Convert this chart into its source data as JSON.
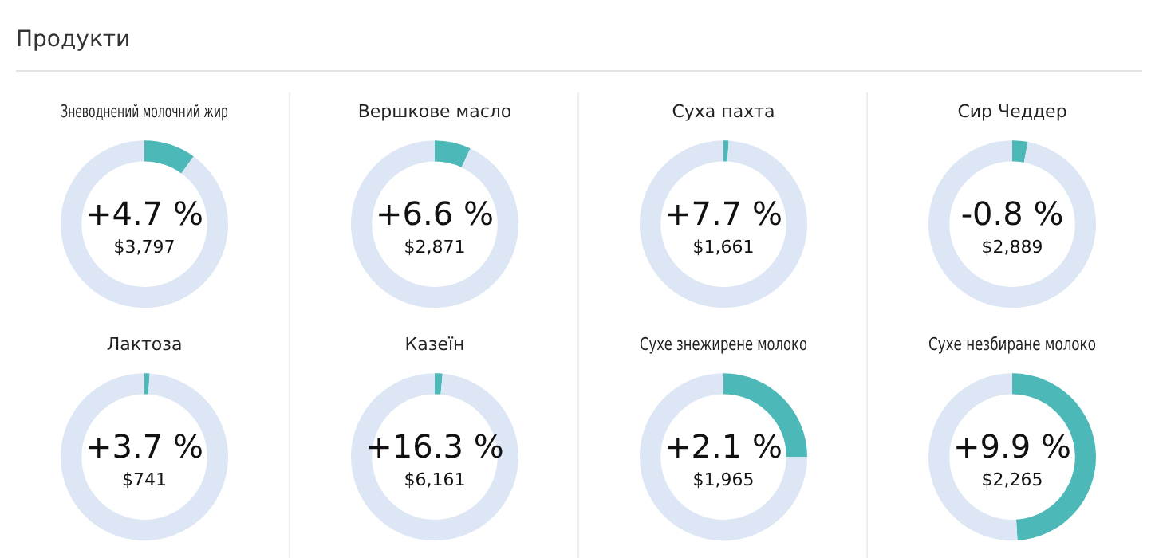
{
  "chart_data": [
    {
      "type": "other",
      "title": "Продукти"
    },
    {
      "type": "donut",
      "title": "Зневоднений молочний жир",
      "categories": [
        null,
        null
      ],
      "values": [
        10,
        90
      ],
      "colors": [
        "#4cb8b8",
        "#dce6f4"
      ],
      "annotations": [
        "+4.7 %",
        "$3,797"
      ]
    },
    {
      "type": "donut",
      "title": "Вершкове масло",
      "categories": [
        null,
        null
      ],
      "values": [
        7,
        93
      ],
      "colors": [
        "#4cb8b8",
        "#dce6f4"
      ],
      "annotations": [
        "+6.6 %",
        "$2,871"
      ]
    },
    {
      "type": "donut",
      "title": "Суха пахта",
      "categories": [
        null,
        null
      ],
      "values": [
        1,
        99
      ],
      "colors": [
        "#4cb8b8",
        "#dce6f4"
      ],
      "annotations": [
        "+7.7 %",
        "$1,661"
      ]
    },
    {
      "type": "donut",
      "title": "Сир Чеддер",
      "categories": [
        null,
        null
      ],
      "values": [
        3,
        97
      ],
      "colors": [
        "#4cb8b8",
        "#dce6f4"
      ],
      "annotations": [
        "-0.8 %",
        "$2,889"
      ]
    },
    {
      "type": "donut",
      "title": "Лактоза",
      "categories": [
        null,
        null
      ],
      "values": [
        1,
        99
      ],
      "colors": [
        "#4cb8b8",
        "#dce6f4"
      ],
      "annotations": [
        "+3.7 %",
        "$741"
      ]
    },
    {
      "type": "donut",
      "title": "Казеїн",
      "categories": [
        null,
        null
      ],
      "values": [
        1.5,
        98.5
      ],
      "colors": [
        "#4cb8b8",
        "#dce6f4"
      ],
      "annotations": [
        "+16.3 %",
        "$6,161"
      ]
    },
    {
      "type": "donut",
      "title": "Сухе знежирене молоко",
      "categories": [
        null,
        null
      ],
      "values": [
        25,
        75
      ],
      "colors": [
        "#4cb8b8",
        "#dce6f4"
      ],
      "annotations": [
        "+2.1 %",
        "$1,965"
      ]
    },
    {
      "type": "donut",
      "title": "Сухе незбиране молоко",
      "categories": [
        null,
        null
      ],
      "values": [
        49,
        51
      ],
      "colors": [
        "#4cb8b8",
        "#dce6f4"
      ],
      "annotations": [
        "+9.9 %",
        "$2,265"
      ]
    }
  ]
}
